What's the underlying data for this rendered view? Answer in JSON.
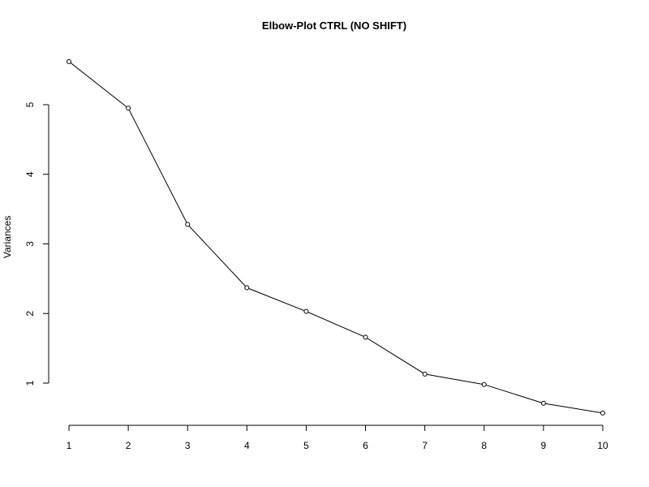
{
  "chart_data": {
    "type": "line",
    "title": "Elbow-Plot CTRL (NO SHIFT)",
    "xlabel": "",
    "ylabel": "Variances",
    "x": [
      1,
      2,
      3,
      4,
      5,
      6,
      7,
      8,
      9,
      10
    ],
    "x_ticks": [
      "1",
      "2",
      "3",
      "4",
      "5",
      "6",
      "7",
      "8",
      "9",
      "10"
    ],
    "y_ticks": [
      "1",
      "2",
      "3",
      "4",
      "5"
    ],
    "xlim": [
      1,
      10
    ],
    "ylim": [
      1,
      5
    ],
    "grid": false,
    "point_style": "open-circle",
    "series": [
      {
        "values": [
          5.62,
          4.95,
          3.28,
          2.37,
          2.03,
          1.66,
          1.13,
          0.98,
          0.71,
          0.57
        ]
      }
    ],
    "colors": {
      "line": "#000000",
      "marker_fill": "#ffffff",
      "background": "#ffffff"
    }
  }
}
